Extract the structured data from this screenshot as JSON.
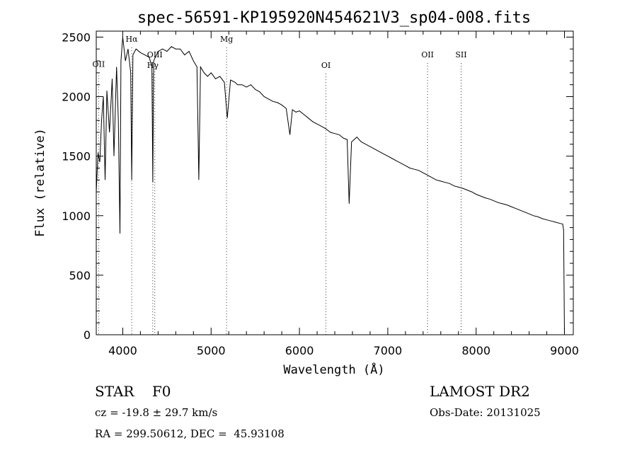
{
  "chart_data": {
    "type": "line",
    "title": "spec-56591-KP195920N454621V3_sp04-008.fits",
    "xlabel": "Wavelength (Å)",
    "ylabel": "Flux (relative)",
    "xlim": [
      3700,
      9100
    ],
    "ylim": [
      0,
      2550
    ],
    "xticks": [
      4000,
      5000,
      6000,
      7000,
      8000,
      9000
    ],
    "yticks": [
      0,
      500,
      1000,
      1500,
      2000,
      2500
    ],
    "grid": false,
    "series": [
      {
        "x": [
          3700,
          3720,
          3740,
          3760,
          3780,
          3800,
          3820,
          3850,
          3880,
          3900,
          3930,
          3950,
          3968,
          3980,
          4000,
          4030,
          4060,
          4090,
          4101,
          4115,
          4150,
          4200,
          4250,
          4300,
          4330,
          4340,
          4350,
          4400,
          4450,
          4500,
          4550,
          4600,
          4650,
          4700,
          4750,
          4800,
          4840,
          4861,
          4880,
          4920,
          4960,
          5000,
          5050,
          5100,
          5150,
          5183,
          5220,
          5270,
          5300,
          5350,
          5400,
          5450,
          5500,
          5550,
          5600,
          5650,
          5700,
          5750,
          5800,
          5850,
          5892,
          5920,
          5960,
          6000,
          6050,
          6100,
          6150,
          6200,
          6250,
          6300,
          6350,
          6400,
          6450,
          6500,
          6540,
          6563,
          6590,
          6620,
          6650,
          6700,
          6750,
          6800,
          6850,
          6900,
          6950,
          7000,
          7050,
          7100,
          7150,
          7200,
          7250,
          7300,
          7350,
          7400,
          7450,
          7500,
          7550,
          7600,
          7650,
          7700,
          7750,
          7800,
          7850,
          7900,
          7950,
          8000,
          8050,
          8100,
          8150,
          8200,
          8250,
          8300,
          8350,
          8400,
          8450,
          8500,
          8550,
          8600,
          8650,
          8700,
          8750,
          8800,
          8850,
          8900,
          8950,
          8980,
          8990,
          9000
        ],
        "y": [
          1200,
          1530,
          1450,
          1800,
          2000,
          1300,
          2050,
          1700,
          2150,
          1500,
          2250,
          1800,
          850,
          2300,
          2500,
          2300,
          2400,
          2200,
          1300,
          2350,
          2400,
          2370,
          2350,
          2330,
          2250,
          1280,
          2300,
          2380,
          2400,
          2380,
          2420,
          2400,
          2400,
          2350,
          2380,
          2300,
          2250,
          1300,
          2250,
          2200,
          2170,
          2200,
          2150,
          2170,
          2120,
          1820,
          2140,
          2120,
          2100,
          2100,
          2080,
          2100,
          2060,
          2040,
          2000,
          1980,
          1960,
          1950,
          1930,
          1900,
          1680,
          1890,
          1870,
          1880,
          1850,
          1820,
          1790,
          1770,
          1750,
          1730,
          1700,
          1690,
          1680,
          1650,
          1640,
          1100,
          1620,
          1640,
          1660,
          1620,
          1600,
          1580,
          1560,
          1540,
          1520,
          1500,
          1480,
          1460,
          1440,
          1420,
          1400,
          1390,
          1380,
          1360,
          1340,
          1320,
          1300,
          1290,
          1280,
          1270,
          1250,
          1240,
          1230,
          1215,
          1200,
          1180,
          1165,
          1150,
          1140,
          1125,
          1110,
          1100,
          1090,
          1075,
          1060,
          1045,
          1030,
          1015,
          1000,
          990,
          975,
          965,
          955,
          945,
          935,
          930,
          880,
          0
        ]
      }
    ],
    "line_markers": [
      {
        "label": "OII",
        "x": 3727,
        "y": 2250
      },
      {
        "label": "Hα",
        "x": 4101,
        "y": 2460
      },
      {
        "label": "OIII",
        "x": 4363,
        "y": 2330
      },
      {
        "label": "Hγ",
        "x": 4340,
        "y": 2240
      },
      {
        "label": "Mg",
        "x": 5175,
        "y": 2460
      },
      {
        "label": "OI",
        "x": 6300,
        "y": 2240
      },
      {
        "label": "OII",
        "x": 7450,
        "y": 2330
      },
      {
        "label": "SII",
        "x": 7830,
        "y": 2330
      }
    ]
  },
  "info": {
    "class_line": "STAR    F0",
    "cz_line": "cz = -19.8 ± 29.7 km/s",
    "radec_line": "RA = 299.50612, DEC =  45.93108",
    "survey": "LAMOST DR2",
    "obs_date": "Obs-Date: 20131025"
  }
}
